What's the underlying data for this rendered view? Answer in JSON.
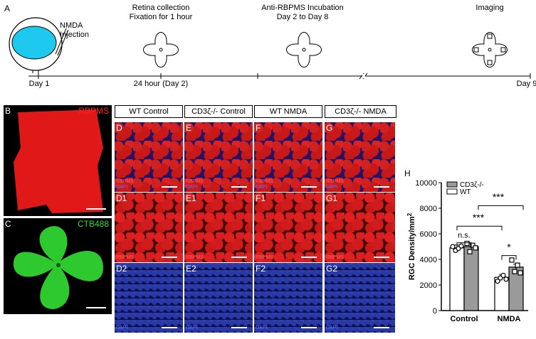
{
  "timeline": {
    "panel_label": "A",
    "nmda_line1": "NMDA",
    "nmda_line2": "Injection",
    "step2_line1": "Retina collection",
    "step2_line2": "Fixation for 1 hour",
    "step3_line1": "Anti-RBPMS Incubation",
    "step3_line2": "Day 2 to Day 8",
    "step4": "Imaging",
    "day1": "Day 1",
    "day2": "24 hour (Day 2)",
    "day9": "Day 9"
  },
  "panels": {
    "B": {
      "label": "B",
      "stain": "RBPMS",
      "color": "#ff2020"
    },
    "C": {
      "label": "C",
      "stain": "CTB488",
      "color": "#22dd22"
    }
  },
  "headers": [
    "WT Control",
    "CD3ζ-/- Control",
    "WT NMDA",
    "CD3ζ-/- NMDA"
  ],
  "grid": {
    "row1": [
      {
        "label": "D",
        "s1": "RBPMS",
        "s2": "DAPI"
      },
      {
        "label": "E",
        "s1": "RBPMS",
        "s2": "DAPI"
      },
      {
        "label": "F",
        "s1": "RBPMS",
        "s2": "DAPI"
      },
      {
        "label": "G",
        "s1": "RBPMS",
        "s2": "DAPI"
      }
    ],
    "row2": [
      {
        "label": "D1",
        "s1": "RBPMS"
      },
      {
        "label": "E1",
        "s1": "RBPMS"
      },
      {
        "label": "F1",
        "s1": "RBPMS"
      },
      {
        "label": "G1",
        "s1": "RBPMS"
      }
    ],
    "row3": [
      {
        "label": "D2",
        "s2": "DAPI"
      },
      {
        "label": "E2",
        "s2": "DAPI"
      },
      {
        "label": "F2",
        "s2": "DAPI"
      },
      {
        "label": "G2",
        "s2": "DAPI"
      }
    ]
  },
  "chart_data": {
    "type": "bar",
    "panel_label": "H",
    "categories": [
      "Control",
      "NMDA"
    ],
    "series": [
      {
        "name": "WT",
        "color": "#ffffff",
        "values": [
          4900,
          2600
        ],
        "points": [
          [
            5000,
            4700,
            4850,
            5050
          ],
          [
            2300,
            2550,
            2750,
            2450
          ]
        ]
      },
      {
        "name": "CD3ζ-/-",
        "color": "#9a9a9a",
        "values": [
          5000,
          3400
        ],
        "points": [
          [
            5250,
            4600,
            5100,
            4900
          ],
          [
            3950,
            3050,
            3550,
            2950
          ]
        ]
      }
    ],
    "ylabel": "RGC Density/mm",
    "ylabel_sup": "2",
    "ylim": [
      0,
      10000
    ],
    "yticks": [
      "0",
      "2000",
      "4000",
      "6000",
      "8000",
      "10000"
    ],
    "significance": [
      {
        "label": "n.s."
      },
      {
        "label": "***"
      },
      {
        "label": "***"
      },
      {
        "label": "*"
      }
    ],
    "legend_position": "top-left"
  }
}
